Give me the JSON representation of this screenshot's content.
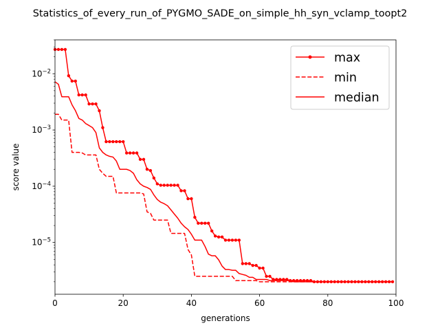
{
  "chart_data": {
    "type": "line",
    "title": "Statistics_of_every_run_of_PYGMO_SADE_on_simple_hh_syn_vclamp_toopt2",
    "xlabel": "generations",
    "ylabel": "score value",
    "xlim": [
      0,
      100
    ],
    "ylim": [
      1.2e-06,
      0.04
    ],
    "yscale": "log",
    "grid": false,
    "legend_position": "upper right",
    "x_ticks": [
      0,
      20,
      40,
      60,
      80,
      100
    ],
    "x_tick_labels": [
      "0",
      "20",
      "40",
      "60",
      "80",
      "100"
    ],
    "y_ticks": [
      1e-05,
      0.0001,
      0.001,
      0.01
    ],
    "y_tick_labels": [
      {
        "base": "10",
        "exp": "−5"
      },
      {
        "base": "10",
        "exp": "−4"
      },
      {
        "base": "10",
        "exp": "−3"
      },
      {
        "base": "10",
        "exp": "−2"
      }
    ],
    "series": [
      {
        "name": "max",
        "color": "#ff0000",
        "style": "solid-markers",
        "points": [
          [
            0,
            0.027
          ],
          [
            1,
            0.027
          ],
          [
            2,
            0.027
          ],
          [
            3,
            0.027
          ],
          [
            4,
            0.0092
          ],
          [
            5,
            0.0074
          ],
          [
            6,
            0.0074
          ],
          [
            7,
            0.0042
          ],
          [
            8,
            0.0042
          ],
          [
            9,
            0.0042
          ],
          [
            10,
            0.0029
          ],
          [
            11,
            0.0029
          ],
          [
            12,
            0.0029
          ],
          [
            13,
            0.0022
          ],
          [
            14,
            0.0011
          ],
          [
            15,
            0.00062
          ],
          [
            16,
            0.00062
          ],
          [
            17,
            0.00062
          ],
          [
            18,
            0.00062
          ],
          [
            19,
            0.00062
          ],
          [
            20,
            0.00062
          ],
          [
            21,
            0.00039
          ],
          [
            22,
            0.00039
          ],
          [
            23,
            0.00039
          ],
          [
            24,
            0.00039
          ],
          [
            25,
            0.0003
          ],
          [
            26,
            0.0003
          ],
          [
            27,
            0.0002
          ],
          [
            28,
            0.00019
          ],
          [
            29,
            0.00014
          ],
          [
            30,
            0.00011
          ],
          [
            31,
            0.000104
          ],
          [
            32,
            0.000104
          ],
          [
            33,
            0.000104
          ],
          [
            34,
            0.000104
          ],
          [
            35,
            0.000104
          ],
          [
            36,
            0.000104
          ],
          [
            37,
            8.3e-05
          ],
          [
            38,
            8.3e-05
          ],
          [
            39,
            6e-05
          ],
          [
            40,
            6e-05
          ],
          [
            41,
            2.8e-05
          ],
          [
            42,
            2.2e-05
          ],
          [
            43,
            2.2e-05
          ],
          [
            44,
            2.2e-05
          ],
          [
            45,
            2.2e-05
          ],
          [
            46,
            1.6e-05
          ],
          [
            47,
            1.3e-05
          ],
          [
            48,
            1.25e-05
          ],
          [
            49,
            1.25e-05
          ],
          [
            50,
            1.1e-05
          ],
          [
            51,
            1.1e-05
          ],
          [
            52,
            1.1e-05
          ],
          [
            53,
            1.1e-05
          ],
          [
            54,
            1.1e-05
          ],
          [
            55,
            4.2e-06
          ],
          [
            56,
            4.2e-06
          ],
          [
            57,
            4.2e-06
          ],
          [
            58,
            3.9e-06
          ],
          [
            59,
            3.9e-06
          ],
          [
            60,
            3.5e-06
          ],
          [
            61,
            3.5e-06
          ],
          [
            62,
            2.5e-06
          ],
          [
            63,
            2.5e-06
          ],
          [
            64,
            2.2e-06
          ],
          [
            65,
            2.2e-06
          ],
          [
            66,
            2.2e-06
          ],
          [
            67,
            2.2e-06
          ],
          [
            68,
            2.2e-06
          ],
          [
            69,
            2.1e-06
          ],
          [
            70,
            2.1e-06
          ],
          [
            71,
            2.1e-06
          ],
          [
            72,
            2.1e-06
          ],
          [
            73,
            2.1e-06
          ],
          [
            74,
            2.1e-06
          ],
          [
            75,
            2.1e-06
          ],
          [
            76,
            2e-06
          ],
          [
            77,
            2e-06
          ],
          [
            78,
            2e-06
          ],
          [
            79,
            2e-06
          ],
          [
            80,
            2e-06
          ],
          [
            81,
            2e-06
          ],
          [
            82,
            2e-06
          ],
          [
            83,
            2e-06
          ],
          [
            84,
            2e-06
          ],
          [
            85,
            2e-06
          ],
          [
            86,
            2e-06
          ],
          [
            87,
            2e-06
          ],
          [
            88,
            2e-06
          ],
          [
            89,
            2e-06
          ],
          [
            90,
            2e-06
          ],
          [
            91,
            2e-06
          ],
          [
            92,
            2e-06
          ],
          [
            93,
            2e-06
          ],
          [
            94,
            2e-06
          ],
          [
            95,
            2e-06
          ],
          [
            96,
            2e-06
          ],
          [
            97,
            2e-06
          ],
          [
            98,
            2e-06
          ],
          [
            99,
            2e-06
          ]
        ]
      },
      {
        "name": "min",
        "color": "#ff0000",
        "style": "dashed",
        "points": [
          [
            0,
            0.0019
          ],
          [
            1,
            0.0019
          ],
          [
            2,
            0.0015
          ],
          [
            3,
            0.0015
          ],
          [
            4,
            0.0015
          ],
          [
            5,
            0.0004
          ],
          [
            6,
            0.0004
          ],
          [
            7,
            0.0004
          ],
          [
            8,
            0.00039
          ],
          [
            9,
            0.00036
          ],
          [
            10,
            0.00036
          ],
          [
            11,
            0.00036
          ],
          [
            12,
            0.00036
          ],
          [
            13,
            0.0002
          ],
          [
            14,
            0.00017
          ],
          [
            15,
            0.00015
          ],
          [
            16,
            0.00015
          ],
          [
            17,
            0.00015
          ],
          [
            18,
            7.6e-05
          ],
          [
            19,
            7.6e-05
          ],
          [
            20,
            7.6e-05
          ],
          [
            21,
            7.6e-05
          ],
          [
            22,
            7.6e-05
          ],
          [
            23,
            7.6e-05
          ],
          [
            24,
            7.6e-05
          ],
          [
            25,
            7.6e-05
          ],
          [
            26,
            7.3e-05
          ],
          [
            27,
            3.5e-05
          ],
          [
            28,
            3.3e-05
          ],
          [
            29,
            2.5e-05
          ],
          [
            30,
            2.5e-05
          ],
          [
            31,
            2.5e-05
          ],
          [
            32,
            2.5e-05
          ],
          [
            33,
            2.5e-05
          ],
          [
            34,
            1.45e-05
          ],
          [
            35,
            1.45e-05
          ],
          [
            36,
            1.45e-05
          ],
          [
            37,
            1.45e-05
          ],
          [
            38,
            1.45e-05
          ],
          [
            39,
            7.5e-06
          ],
          [
            40,
            6e-06
          ],
          [
            41,
            2.5e-06
          ],
          [
            42,
            2.5e-06
          ],
          [
            43,
            2.5e-06
          ],
          [
            44,
            2.5e-06
          ],
          [
            45,
            2.5e-06
          ],
          [
            46,
            2.5e-06
          ],
          [
            47,
            2.5e-06
          ],
          [
            48,
            2.5e-06
          ],
          [
            49,
            2.5e-06
          ],
          [
            50,
            2.5e-06
          ],
          [
            51,
            2.5e-06
          ],
          [
            52,
            2.5e-06
          ],
          [
            53,
            2.1e-06
          ],
          [
            54,
            2.1e-06
          ],
          [
            55,
            2.1e-06
          ],
          [
            56,
            2.1e-06
          ],
          [
            57,
            2.1e-06
          ],
          [
            58,
            2.1e-06
          ],
          [
            59,
            2.1e-06
          ],
          [
            60,
            2e-06
          ],
          [
            61,
            2e-06
          ],
          [
            62,
            2e-06
          ],
          [
            63,
            2e-06
          ],
          [
            64,
            2e-06
          ],
          [
            65,
            2e-06
          ],
          [
            66,
            2e-06
          ],
          [
            67,
            2e-06
          ],
          [
            68,
            2e-06
          ],
          [
            69,
            2e-06
          ],
          [
            70,
            2e-06
          ],
          [
            71,
            2e-06
          ],
          [
            72,
            2e-06
          ],
          [
            73,
            2e-06
          ],
          [
            74,
            2e-06
          ],
          [
            75,
            2e-06
          ],
          [
            76,
            2e-06
          ],
          [
            77,
            2e-06
          ],
          [
            78,
            2e-06
          ],
          [
            79,
            2e-06
          ],
          [
            80,
            2e-06
          ],
          [
            81,
            2e-06
          ],
          [
            82,
            2e-06
          ],
          [
            83,
            2e-06
          ],
          [
            84,
            2e-06
          ],
          [
            85,
            2e-06
          ],
          [
            86,
            2e-06
          ],
          [
            87,
            2e-06
          ],
          [
            88,
            2e-06
          ],
          [
            89,
            2e-06
          ],
          [
            90,
            2e-06
          ],
          [
            91,
            2e-06
          ],
          [
            92,
            2e-06
          ],
          [
            93,
            2e-06
          ],
          [
            94,
            2e-06
          ],
          [
            95,
            2e-06
          ],
          [
            96,
            2e-06
          ],
          [
            97,
            2e-06
          ],
          [
            98,
            2e-06
          ],
          [
            99,
            2e-06
          ]
        ]
      },
      {
        "name": "median",
        "color": "#ff0000",
        "style": "solid",
        "points": [
          [
            0,
            0.0072
          ],
          [
            1,
            0.0065
          ],
          [
            2,
            0.0039
          ],
          [
            3,
            0.0039
          ],
          [
            4,
            0.0039
          ],
          [
            5,
            0.0028
          ],
          [
            6,
            0.0022
          ],
          [
            7,
            0.0016
          ],
          [
            8,
            0.0015
          ],
          [
            9,
            0.0013
          ],
          [
            10,
            0.0012
          ],
          [
            11,
            0.0011
          ],
          [
            12,
            0.0009
          ],
          [
            13,
            0.00048
          ],
          [
            14,
            0.0004
          ],
          [
            15,
            0.00036
          ],
          [
            16,
            0.00034
          ],
          [
            17,
            0.00033
          ],
          [
            18,
            0.00028
          ],
          [
            19,
            0.0002
          ],
          [
            20,
            0.0002
          ],
          [
            21,
            0.0002
          ],
          [
            22,
            0.00019
          ],
          [
            23,
            0.00017
          ],
          [
            24,
            0.00013
          ],
          [
            25,
            0.00011
          ],
          [
            26,
            0.0001
          ],
          [
            27,
            9.5e-05
          ],
          [
            28,
            8.8e-05
          ],
          [
            29,
            7e-05
          ],
          [
            30,
            5.8e-05
          ],
          [
            31,
            5.2e-05
          ],
          [
            32,
            4.9e-05
          ],
          [
            33,
            4.5e-05
          ],
          [
            34,
            3.8e-05
          ],
          [
            35,
            3.2e-05
          ],
          [
            36,
            2.7e-05
          ],
          [
            37,
            2.2e-05
          ],
          [
            38,
            1.9e-05
          ],
          [
            39,
            1.7e-05
          ],
          [
            40,
            1.4e-05
          ],
          [
            41,
            1.1e-05
          ],
          [
            42,
            1.1e-05
          ],
          [
            43,
            1.1e-05
          ],
          [
            44,
            8.5e-06
          ],
          [
            45,
            6.2e-06
          ],
          [
            46,
            5.8e-06
          ],
          [
            47,
            5.8e-06
          ],
          [
            48,
            4.9e-06
          ],
          [
            49,
            3.8e-06
          ],
          [
            50,
            3.3e-06
          ],
          [
            51,
            3.3e-06
          ],
          [
            52,
            3.2e-06
          ],
          [
            53,
            3.2e-06
          ],
          [
            54,
            2.8e-06
          ],
          [
            55,
            2.7e-06
          ],
          [
            56,
            2.6e-06
          ],
          [
            57,
            2.4e-06
          ],
          [
            58,
            2.4e-06
          ],
          [
            59,
            2.2e-06
          ],
          [
            60,
            2.2e-06
          ],
          [
            61,
            2.2e-06
          ],
          [
            62,
            2.2e-06
          ],
          [
            63,
            2.1e-06
          ],
          [
            64,
            2.1e-06
          ],
          [
            65,
            2.1e-06
          ],
          [
            66,
            2.1e-06
          ],
          [
            67,
            2.1e-06
          ],
          [
            68,
            2.1e-06
          ],
          [
            69,
            2.1e-06
          ],
          [
            70,
            2e-06
          ],
          [
            71,
            2e-06
          ],
          [
            72,
            2e-06
          ],
          [
            73,
            2e-06
          ],
          [
            74,
            2e-06
          ],
          [
            75,
            2e-06
          ],
          [
            76,
            2e-06
          ],
          [
            77,
            2e-06
          ],
          [
            78,
            2e-06
          ],
          [
            79,
            2e-06
          ],
          [
            80,
            2e-06
          ],
          [
            81,
            2e-06
          ],
          [
            82,
            2e-06
          ],
          [
            83,
            2e-06
          ],
          [
            84,
            2e-06
          ],
          [
            85,
            2e-06
          ],
          [
            86,
            2e-06
          ],
          [
            87,
            2e-06
          ],
          [
            88,
            2e-06
          ],
          [
            89,
            2e-06
          ],
          [
            90,
            2e-06
          ],
          [
            91,
            2e-06
          ],
          [
            92,
            2e-06
          ],
          [
            93,
            2e-06
          ],
          [
            94,
            2e-06
          ],
          [
            95,
            2e-06
          ],
          [
            96,
            2e-06
          ],
          [
            97,
            2e-06
          ],
          [
            98,
            2e-06
          ],
          [
            99,
            2e-06
          ]
        ]
      }
    ]
  }
}
